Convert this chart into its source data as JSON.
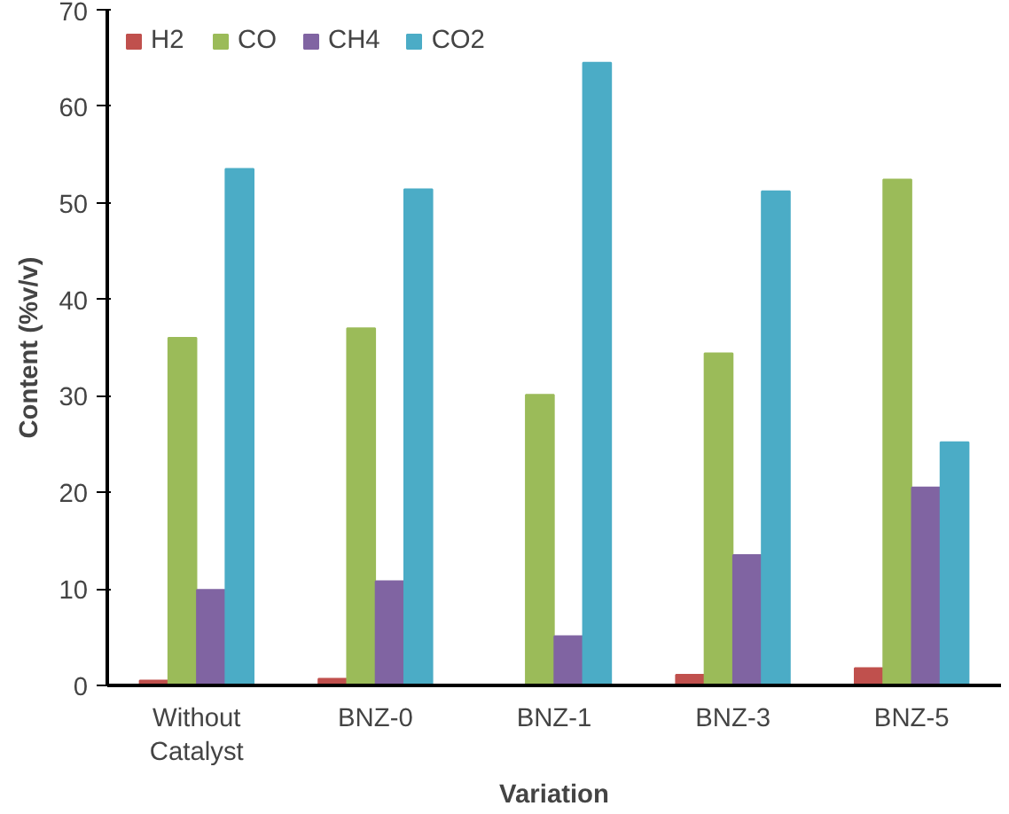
{
  "chart_data": {
    "type": "bar",
    "xlabel": "Variation",
    "ylabel": "Content (%v/v)",
    "categories": [
      "Without Catalyst",
      "BNZ-0",
      "BNZ-1",
      "BNZ-3",
      "BNZ-5"
    ],
    "series": [
      {
        "name": "H2",
        "color": "#c0504d",
        "values": [
          0.5,
          0.7,
          0,
          1.1,
          1.8
        ]
      },
      {
        "name": "CO",
        "color": "#9bbb59",
        "values": [
          36,
          37,
          30.1,
          34.4,
          52.4
        ]
      },
      {
        "name": "CH4",
        "color": "#8064a2",
        "values": [
          9.9,
          10.8,
          5.1,
          13.5,
          20.5
        ]
      },
      {
        "name": "CO2",
        "color": "#4bacc6",
        "values": [
          53.5,
          51.4,
          64.5,
          51.2,
          25.2
        ]
      }
    ],
    "ylim": [
      0,
      70
    ],
    "yticks": [
      0,
      10,
      20,
      30,
      40,
      50,
      60,
      70
    ],
    "grid": false,
    "legend": "top left"
  }
}
